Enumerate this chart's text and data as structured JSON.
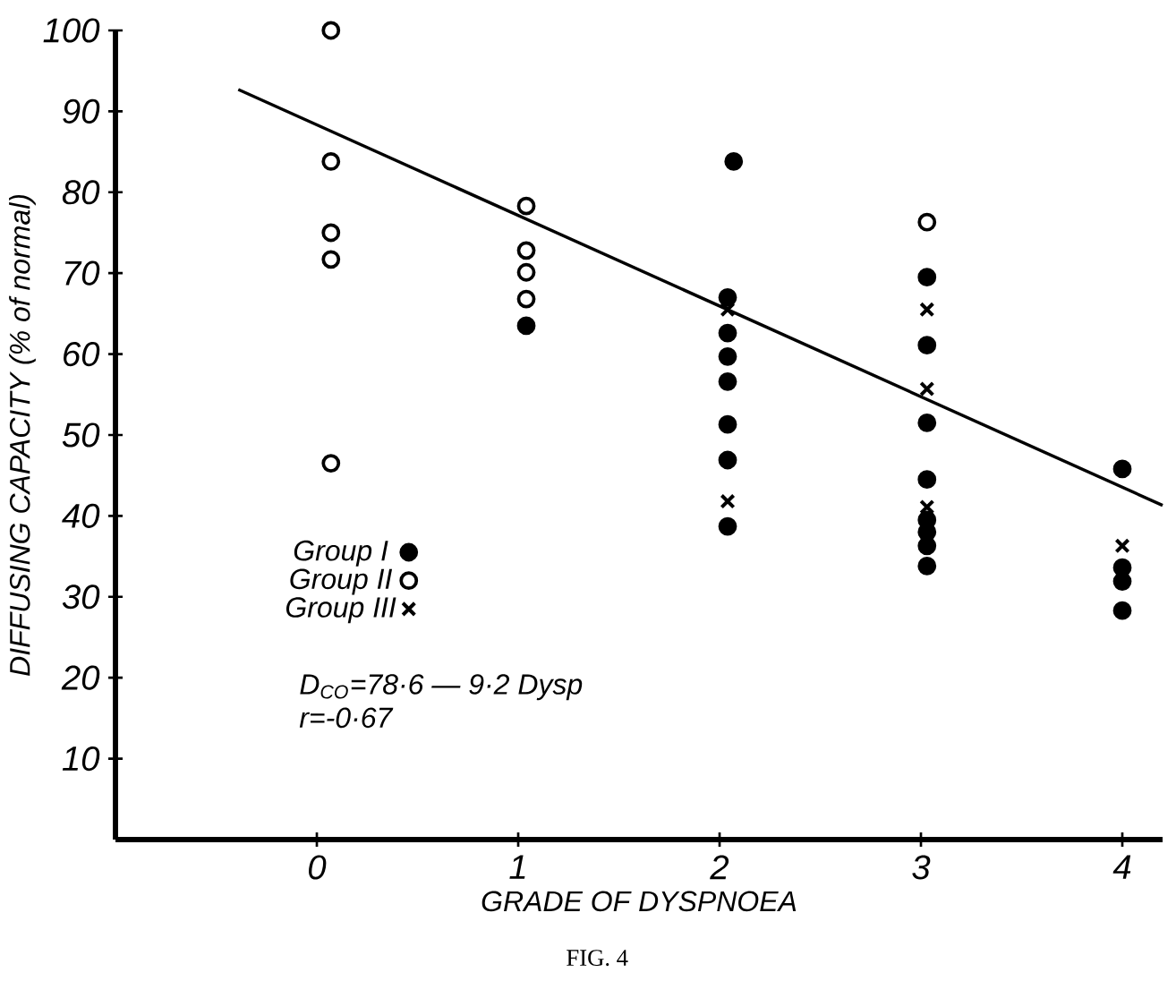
{
  "chart_data": {
    "type": "scatter",
    "xlabel": "GRADE OF DYSPNOEA",
    "ylabel": "DIFFUSING CAPACITY (% of normal)",
    "xlim": [
      -1,
      4.2
    ],
    "ylim": [
      0,
      100
    ],
    "xticks": [
      0,
      1,
      2,
      3,
      4
    ],
    "yticks": [
      10,
      20,
      30,
      40,
      50,
      60,
      70,
      80,
      90,
      100
    ],
    "legend": "left",
    "grid": false,
    "series": [
      {
        "name": "Group I",
        "marker": "circle",
        "color": "#000000",
        "x": [
          1.04,
          2.07,
          2.04,
          2.04,
          2.04,
          2.04,
          2.04,
          2.04,
          2.04,
          3.03,
          3.03,
          3.03,
          3.03,
          3.03,
          3.03,
          3.03,
          3.03,
          4.0,
          4.0,
          4.0,
          4.0
        ],
        "values": [
          63.5,
          83.8,
          67.0,
          62.6,
          59.7,
          56.6,
          51.3,
          46.9,
          38.7,
          69.5,
          61.1,
          51.5,
          44.5,
          39.5,
          38.0,
          36.3,
          33.8,
          45.8,
          33.6,
          31.9,
          28.3
        ]
      },
      {
        "name": "Group II",
        "marker": "circle",
        "color": "#ffffff",
        "x": [
          0.07,
          0.07,
          0.07,
          0.07,
          0.07,
          1.04,
          1.04,
          1.04,
          1.04,
          3.03
        ],
        "values": [
          100,
          83.8,
          75,
          71.7,
          46.5,
          78.3,
          72.8,
          70.1,
          66.8,
          76.3
        ]
      },
      {
        "name": "Group III",
        "marker": "cross",
        "color": "#000000",
        "x": [
          2.04,
          2.04,
          3.03,
          3.03,
          3.03,
          4.0
        ],
        "values": [
          65.5,
          41.8,
          65.5,
          55.7,
          41.1,
          36.3
        ]
      },
      {
        "type": "line",
        "color": "#000000",
        "x": [
          -0.39,
          4.2
        ],
        "values": [
          92.7,
          41.3
        ]
      }
    ],
    "annotations": [
      "D$_{CO}$=78·6 — 9·2 Dysp",
      "r=-0·67",
      "FIG. 4"
    ]
  }
}
